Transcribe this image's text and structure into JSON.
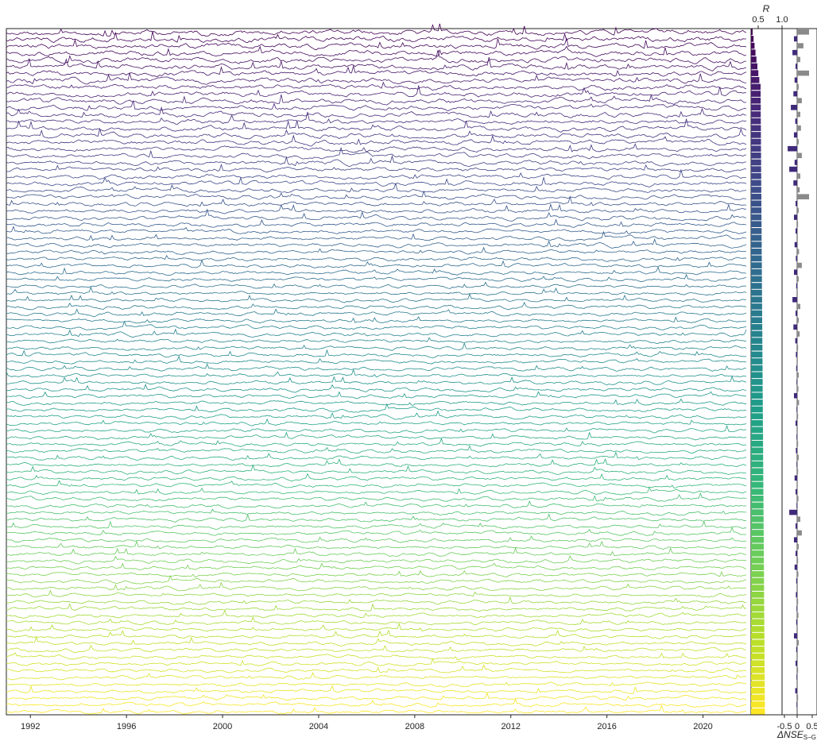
{
  "chart_data": [
    {
      "type": "line",
      "description_panel": "stacked time series",
      "x_axis": {
        "ticks": [
          "1992",
          "1996",
          "2000",
          "2004",
          "2008",
          "2012",
          "2016",
          "2020"
        ],
        "range": [
          1991.0,
          2022.0
        ]
      },
      "n_series": 100,
      "colormap": "viridis",
      "colormap_stops": [
        "#440154",
        "#482878",
        "#3e4a89",
        "#31688e",
        "#26828e",
        "#1f9e89",
        "#35b779",
        "#6ece58",
        "#b5de2b",
        "#fde725"
      ]
    },
    {
      "type": "bar",
      "orientation": "horizontal",
      "x_axis": {
        "title": "R",
        "ticks": [
          "0.5",
          "1.0"
        ],
        "range": [
          0.35,
          1.0
        ]
      },
      "n_bars": 100,
      "value_range": [
        0.42,
        0.98
      ]
    },
    {
      "type": "bar",
      "orientation": "horizontal",
      "x_axis": {
        "title": "ΔNSE",
        "title_subscript": "S−G",
        "ticks": [
          "-0.5",
          "0",
          "0.5"
        ],
        "range": [
          -0.6,
          0.6
        ]
      },
      "n_bars": 100,
      "negative_color": "#3f2a7a",
      "positive_color": "#8a8a8a",
      "values": [
        0.38,
        -0.1,
        0.2,
        -0.15,
        0.1,
        -0.05,
        0.38,
        -0.08,
        0.05,
        -0.12,
        0.15,
        -0.2,
        0.1,
        -0.06,
        0.12,
        -0.1,
        0.05,
        -0.3,
        0.15,
        -0.08,
        -0.25,
        0.1,
        -0.12,
        0.08,
        0.38,
        -0.05,
        0.05,
        -0.1,
        0.03,
        -0.05,
        0.02,
        -0.08,
        0.06,
        -0.04,
        0.15,
        -0.1,
        0.05,
        -0.03,
        0.02,
        -0.15,
        0.1,
        -0.05,
        0.05,
        -0.12,
        0.08,
        -0.06,
        0.03,
        -0.04,
        0.02,
        -0.03,
        0.05,
        -0.02,
        0.04,
        -0.1,
        0.06,
        -0.02,
        0.03,
        -0.05,
        0.02,
        -0.02,
        0.03,
        -0.04,
        0.05,
        -0.02,
        0.03,
        -0.08,
        0.02,
        -0.05,
        0.04,
        -0.02,
        -0.25,
        0.1,
        -0.05,
        0.15,
        -0.1,
        0.05,
        -0.05,
        0.03,
        -0.08,
        0.04,
        -0.03,
        0.02,
        -0.04,
        0.03,
        -0.02,
        0.04,
        -0.03,
        0.02,
        -0.1,
        0.05,
        -0.03,
        0.02,
        -0.05,
        0.03,
        -0.02,
        0.02,
        -0.06,
        0.03,
        -0.02,
        0.02
      ]
    }
  ],
  "labels": {
    "r_axis_title": "R",
    "nse_axis_title": "ΔNSE",
    "nse_subscript": "S−G"
  }
}
